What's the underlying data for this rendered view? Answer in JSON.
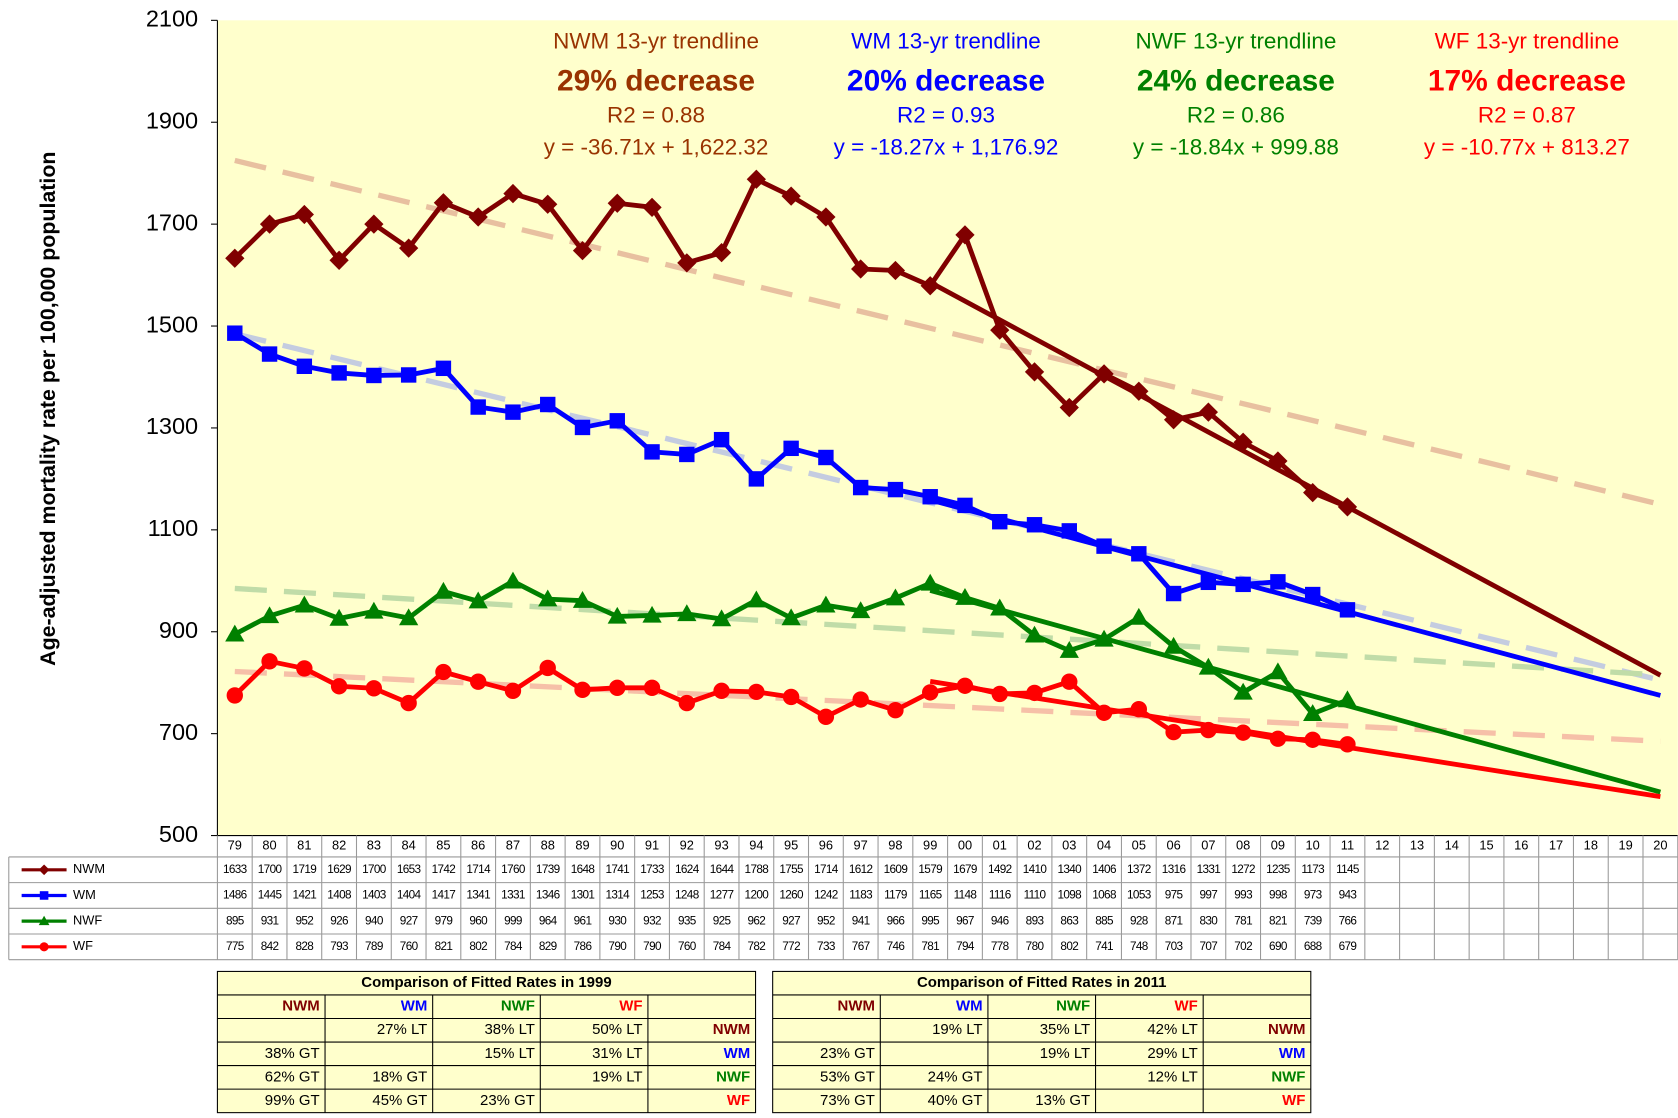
{
  "chart_data": {
    "type": "line",
    "y_axis_label": "Age-adjusted mortality rate per 100,000 population",
    "categories": [
      "79",
      "80",
      "81",
      "82",
      "83",
      "84",
      "85",
      "86",
      "87",
      "88",
      "89",
      "90",
      "91",
      "92",
      "93",
      "94",
      "95",
      "96",
      "97",
      "98",
      "99",
      "00",
      "01",
      "02",
      "03",
      "04",
      "05",
      "06",
      "07",
      "08",
      "09",
      "10",
      "11",
      "12",
      "13",
      "14",
      "15",
      "16",
      "17",
      "18",
      "19",
      "20"
    ],
    "ylim": [
      500,
      2100
    ],
    "yticks": [
      500,
      700,
      900,
      1100,
      1300,
      1500,
      1700,
      1900,
      2100
    ],
    "grid": false,
    "background": "#ffffcc",
    "series": [
      {
        "name": "NWM",
        "color": "#800000",
        "marker": "diamond",
        "values": [
          1633,
          1700,
          1719,
          1629,
          1700,
          1653,
          1742,
          1714,
          1760,
          1739,
          1648,
          1741,
          1733,
          1624,
          1644,
          1788,
          1755,
          1714,
          1612,
          1609,
          1579,
          1679,
          1492,
          1410,
          1340,
          1406,
          1372,
          1316,
          1331,
          1272,
          1235,
          1173,
          1145,
          null,
          null,
          null,
          null,
          null,
          null,
          null,
          null,
          null
        ]
      },
      {
        "name": "WM",
        "color": "#0000ff",
        "marker": "square",
        "values": [
          1486,
          1445,
          1421,
          1408,
          1403,
          1404,
          1417,
          1341,
          1331,
          1346,
          1301,
          1314,
          1253,
          1248,
          1277,
          1200,
          1260,
          1242,
          1183,
          1179,
          1165,
          1148,
          1116,
          1110,
          1098,
          1068,
          1053,
          975,
          997,
          993,
          998,
          973,
          943,
          null,
          null,
          null,
          null,
          null,
          null,
          null,
          null,
          null
        ]
      },
      {
        "name": "NWF",
        "color": "#008000",
        "marker": "triangle",
        "values": [
          895,
          931,
          952,
          926,
          940,
          927,
          979,
          960,
          999,
          964,
          961,
          930,
          932,
          935,
          925,
          962,
          927,
          952,
          941,
          966,
          995,
          967,
          946,
          893,
          863,
          885,
          928,
          871,
          830,
          781,
          821,
          739,
          766,
          null,
          null,
          null,
          null,
          null,
          null,
          null,
          null,
          null
        ]
      },
      {
        "name": "WF",
        "color": "#ff0000",
        "marker": "circle",
        "values": [
          775,
          842,
          828,
          793,
          789,
          760,
          821,
          802,
          784,
          829,
          786,
          790,
          790,
          760,
          784,
          782,
          772,
          733,
          767,
          746,
          781,
          794,
          778,
          780,
          802,
          741,
          748,
          703,
          707,
          702,
          690,
          688,
          679,
          null,
          null,
          null,
          null,
          null,
          null,
          null,
          null,
          null
        ]
      }
    ],
    "long_trendlines": [
      {
        "color": "#e8c0a0",
        "x": [
          "79",
          "20"
        ],
        "values": [
          1825,
          1150
        ]
      },
      {
        "color": "#c4cce0",
        "x": [
          "79",
          "20"
        ],
        "values": [
          1485,
          805
        ]
      },
      {
        "color": "#c0dca8",
        "x": [
          "79",
          "20"
        ],
        "values": [
          985,
          815
        ]
      },
      {
        "color": "#f6c0a8",
        "x": [
          "79",
          "20"
        ],
        "values": [
          822,
          685
        ]
      }
    ],
    "fitted_trendlines": [
      {
        "color": "#800000",
        "x": [
          "99",
          "20"
        ],
        "values": [
          1585.61,
          814.7
        ]
      },
      {
        "color": "#0000ff",
        "x": [
          "99",
          "20"
        ],
        "values": [
          1158.65,
          774.98
        ]
      },
      {
        "color": "#008000",
        "x": [
          "99",
          "20"
        ],
        "values": [
          981.04,
          585.4
        ]
      },
      {
        "color": "#ff0000",
        "x": [
          "99",
          "20"
        ],
        "values": [
          802.5,
          576.3
        ]
      }
    ],
    "annotations": [
      {
        "color": "#993300",
        "bold_color": "#993300",
        "title": "NWM 13-yr trendline",
        "change": "29% decrease",
        "r2": "R2 = 0.88",
        "equation": "y = -36.71x + 1,622.32"
      },
      {
        "color": "#0000ff",
        "bold_color": "#0000ff",
        "title": "WM 13-yr trendline",
        "change": "20% decrease",
        "r2": "R2 = 0.93",
        "equation": "y = -18.27x + 1,176.92"
      },
      {
        "color": "#008000",
        "bold_color": "#008000",
        "title": "NWF 13-yr trendline",
        "change": "24% decrease",
        "r2": "R2 = 0.86",
        "equation": "y = -18.84x + 999.88"
      },
      {
        "color": "#ff0000",
        "bold_color": "#ff0000",
        "title": "WF 13-yr trendline",
        "change": "17% decrease",
        "r2": "R2 = 0.87",
        "equation": "y = -10.77x + 813.27"
      }
    ]
  },
  "tables": [
    {
      "title": "Comparison of Fitted Rates in 1999",
      "header": [
        "NWM",
        "WM",
        "NWF",
        "WF"
      ],
      "rows": [
        [
          null,
          "27% LT",
          "38% LT",
          "50% LT",
          "NWM"
        ],
        [
          "38% GT",
          null,
          "15% LT",
          "31% LT",
          "WM"
        ],
        [
          "62% GT",
          "18% GT",
          null,
          "19% LT",
          "NWF"
        ],
        [
          "99% GT",
          "45% GT",
          "23% GT",
          null,
          "WF"
        ]
      ]
    },
    {
      "title": "Comparison of Fitted Rates in 2011",
      "header": [
        "NWM",
        "WM",
        "NWF",
        "WF"
      ],
      "rows": [
        [
          null,
          "19% LT",
          "35% LT",
          "42% LT",
          "NWM"
        ],
        [
          "23% GT",
          null,
          "19% LT",
          "29% LT",
          "WM"
        ],
        [
          "53% GT",
          "24% GT",
          null,
          "12% LT",
          "NWF"
        ],
        [
          "73% GT",
          "40% GT",
          "13% GT",
          null,
          "WF"
        ]
      ]
    }
  ]
}
